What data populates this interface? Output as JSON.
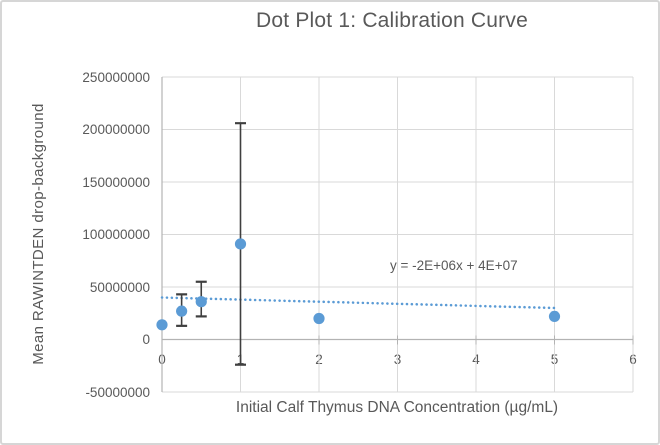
{
  "chart_data": {
    "type": "scatter",
    "title": "Dot Plot 1: Calibration Curve",
    "xlabel": "Initial Calf Thymus DNA Concentration (µg/mL)",
    "ylabel": "Mean RAWINTDEN drop-background",
    "xlim": [
      0,
      6
    ],
    "ylim": [
      -50000000,
      250000000
    ],
    "x_ticks": [
      0,
      1,
      2,
      3,
      4,
      5,
      6
    ],
    "y_ticks": [
      250000000,
      200000000,
      150000000,
      100000000,
      50000000,
      0,
      -50000000
    ],
    "grid": true,
    "legend": false,
    "points": [
      {
        "x": 0,
        "y": 14000000
      },
      {
        "x": 0.25,
        "y": 27000000,
        "y_err_low": 13000000,
        "y_err_high": 43000000
      },
      {
        "x": 0.5,
        "y": 36000000,
        "y_err_low": 22000000,
        "y_err_high": 55000000
      },
      {
        "x": 1,
        "y": 91000000,
        "y_err_low": -24000000,
        "y_err_high": 206000000
      },
      {
        "x": 2,
        "y": 20000000
      },
      {
        "x": 5,
        "y": 22000000
      }
    ],
    "trendline": {
      "equation": "y = -2E+06x + 4E+07",
      "slope": -2000000,
      "intercept": 40000000,
      "x_start": 0,
      "x_end": 5,
      "style": "dotted"
    },
    "colors": {
      "marker": "#5B9BD5",
      "trendline": "#5B9BD5",
      "error_bar": "#3f3f3f",
      "text": "#595959",
      "gridline": "#d9d9d9",
      "axis": "#b3b3b3"
    }
  }
}
